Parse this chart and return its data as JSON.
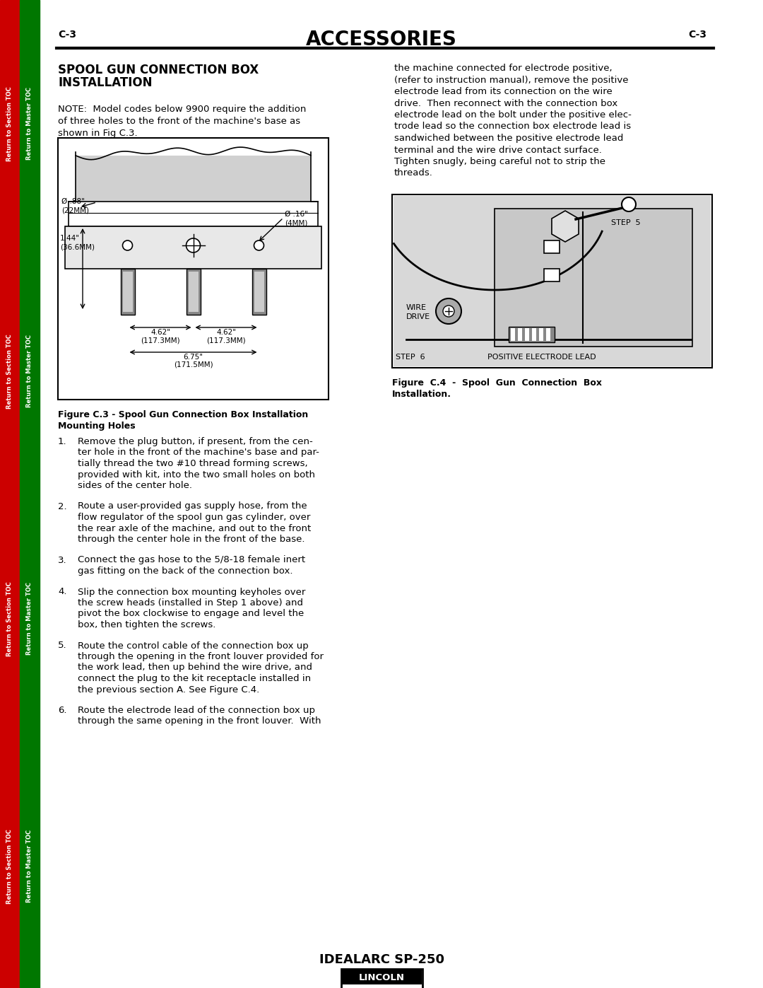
{
  "page_header_left": "C-3",
  "page_header_center": "ACCESSORIES",
  "page_header_right": "C-3",
  "section_title_line1": "SPOOL GUN CONNECTION BOX",
  "section_title_line2": "INSTALLATION",
  "note_text_lines": [
    "NOTE:  Model codes below 9900 require the addition",
    "of three holes to the front of the machine's base as",
    "shown in Fig C.3."
  ],
  "fig_c3_caption_line1": "Figure C.3 - Spool Gun Connection Box Installation",
  "fig_c3_caption_line2": "Mounting Holes",
  "right_col_lines": [
    "the machine connected for electrode positive,",
    "(refer to instruction manual), remove the positive",
    "electrode lead from its connection on the wire",
    "drive.  Then reconnect with the connection box",
    "electrode lead on the bolt under the positive elec-",
    "trode lead so the connection box electrode lead is",
    "sandwiched between the positive electrode lead",
    "terminal and the wire drive contact surface.",
    "Tighten snugly, being careful not to strip the",
    "threads."
  ],
  "fig_c4_caption_line1": "Figure  C.4  -  Spool  Gun  Connection  Box",
  "fig_c4_caption_line2": "Installation.",
  "steps": [
    [
      "Remove the plug button, if present, from the cen-",
      "ter hole in the front of the machine's base and par-",
      "tially thread the two #10 thread forming screws,",
      "provided with kit, into the two small holes on both",
      "sides of the center hole."
    ],
    [
      "Route a user-provided gas supply hose, from the",
      "flow regulator of the spool gun gas cylinder, over",
      "the rear axle of the machine, and out to the front",
      "through the center hole in the front of the base."
    ],
    [
      "Connect the gas hose to the 5/8-18 female inert",
      "gas fitting on the back of the connection box."
    ],
    [
      "Slip the connection box mounting keyholes over",
      "the screw heads (installed in Step 1 above) and",
      "pivot the box clockwise to engage and level the",
      "box, then tighten the screws."
    ],
    [
      "Route the control cable of the connection box up",
      "through the opening in the front louver provided for",
      "the work lead, then up behind the wire drive, and",
      "connect the plug to the kit receptacle installed in",
      "the previous section A. See Figure C.4."
    ],
    [
      "Route the electrode lead of the connection box up",
      "through the same opening in the front louver.  With"
    ]
  ],
  "footer_text": "IDEALARC SP-250",
  "sidebar_red_text": "Return to Section TOC",
  "sidebar_green_text": "Return to Master TOC",
  "bg_color": "#ffffff",
  "sidebar_red_color": "#cc0000",
  "sidebar_green_color": "#007700"
}
